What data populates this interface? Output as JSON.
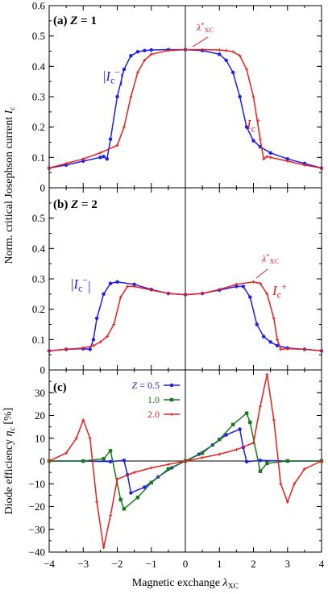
{
  "colors": {
    "red": "#e8201c",
    "blue": "#1d1df0",
    "green": "#1a7a1a",
    "axis": "#000000"
  },
  "chart_data": [
    {
      "type": "line",
      "panel_label": "(a) Z = 1",
      "ylabel": "",
      "xlim": [
        -4,
        4
      ],
      "ylim": [
        0,
        0.6
      ],
      "yticks": [
        "0",
        "0.1",
        "0.2",
        "0.3",
        "0.4",
        "0.5",
        "0.6"
      ],
      "series": [
        {
          "name": "|I_c^-|",
          "color": "blue",
          "x": [
            -4,
            -3.5,
            -3,
            -2.5,
            -2.4,
            -2.3,
            -2.2,
            -2.0,
            -1.8,
            -1.6,
            -1.4,
            -1.2,
            -1.0,
            -0.5,
            0,
            0.5,
            1.0,
            1.2,
            1.4,
            1.6,
            1.8,
            2.0,
            2.2,
            2.5,
            3,
            3.5,
            4
          ],
          "y": [
            0.065,
            0.075,
            0.088,
            0.1,
            0.103,
            0.095,
            0.16,
            0.3,
            0.39,
            0.435,
            0.448,
            0.452,
            0.454,
            0.455,
            0.455,
            0.452,
            0.44,
            0.42,
            0.38,
            0.3,
            0.2,
            0.155,
            0.135,
            0.115,
            0.095,
            0.08,
            0.065
          ]
        },
        {
          "name": "I_c^+",
          "color": "red",
          "x": [
            -4,
            -3.5,
            -3,
            -2.5,
            -2.0,
            -1.8,
            -1.6,
            -1.4,
            -1.2,
            -1.0,
            -0.5,
            0,
            0.5,
            1.0,
            1.2,
            1.4,
            1.6,
            1.8,
            2.0,
            2.2,
            2.3,
            2.4,
            2.5,
            3,
            3.5,
            4
          ],
          "y": [
            0.065,
            0.08,
            0.095,
            0.115,
            0.14,
            0.2,
            0.3,
            0.38,
            0.42,
            0.44,
            0.452,
            0.455,
            0.455,
            0.454,
            0.452,
            0.448,
            0.435,
            0.39,
            0.3,
            0.16,
            0.095,
            0.103,
            0.1,
            0.088,
            0.075,
            0.065
          ]
        }
      ],
      "annotations": [
        "|I_c^-|",
        "I_c^+",
        "λ*_XC"
      ]
    },
    {
      "type": "line",
      "panel_label": "(b) Z = 2",
      "ylabel": "Norm. critical Josephson current I_c",
      "xlim": [
        -4,
        4
      ],
      "ylim": [
        0,
        0.6
      ],
      "yticks": [
        "0",
        "0.1",
        "0.2",
        "0.3",
        "0.4",
        "0.5"
      ],
      "series": [
        {
          "name": "|I_c^-|",
          "color": "blue",
          "x": [
            -4,
            -3.5,
            -3,
            -2.8,
            -2.7,
            -2.6,
            -2.4,
            -2.2,
            -2.0,
            -1.5,
            -1.0,
            -0.5,
            0,
            0.5,
            1.0,
            1.5,
            1.7,
            1.9,
            2.1,
            2.3,
            2.5,
            2.7,
            3.0,
            3.5,
            4
          ],
          "y": [
            0.063,
            0.068,
            0.07,
            0.068,
            0.1,
            0.17,
            0.25,
            0.285,
            0.29,
            0.282,
            0.265,
            0.252,
            0.248,
            0.252,
            0.263,
            0.275,
            0.275,
            0.24,
            0.15,
            0.11,
            0.092,
            0.08,
            0.072,
            0.068,
            0.063
          ]
        },
        {
          "name": "I_c^+",
          "color": "red",
          "x": [
            -4,
            -3.5,
            -3.0,
            -2.7,
            -2.5,
            -2.3,
            -2.1,
            -1.9,
            -1.7,
            -1.5,
            -1.0,
            -0.5,
            0,
            0.5,
            1.0,
            1.5,
            2.0,
            2.2,
            2.4,
            2.6,
            2.7,
            2.8,
            3,
            3.5,
            4
          ],
          "y": [
            0.063,
            0.068,
            0.072,
            0.08,
            0.092,
            0.11,
            0.15,
            0.24,
            0.275,
            0.275,
            0.263,
            0.252,
            0.248,
            0.252,
            0.265,
            0.282,
            0.29,
            0.285,
            0.25,
            0.17,
            0.1,
            0.068,
            0.07,
            0.068,
            0.063
          ]
        }
      ],
      "annotations": [
        "|I_c^-|",
        "I_c^+",
        "λ*_XC"
      ]
    },
    {
      "type": "line",
      "panel_label": "(c)",
      "ylabel": "Diode efficiency η_c [%]",
      "xlabel": "Magnetic exchange λ_XC",
      "xlim": [
        -4,
        4
      ],
      "ylim": [
        -40,
        40
      ],
      "xticks": [
        "-4",
        "-3",
        "-2",
        "-1",
        "0",
        "1",
        "2",
        "3",
        "4"
      ],
      "yticks": [
        "-40",
        "-30",
        "-20",
        "-10",
        "0",
        "10",
        "20",
        "30"
      ],
      "legend_position": "top-center",
      "series": [
        {
          "name": "Z = 0.5",
          "color": "blue",
          "x": [
            -4,
            -3,
            -2.2,
            -1.8,
            -1.7,
            -1.6,
            -1.2,
            -0.8,
            -0.4,
            0,
            0.4,
            0.8,
            1.2,
            1.6,
            1.7,
            1.8,
            2.2,
            3,
            4
          ],
          "y": [
            0,
            0,
            -0.3,
            0.3,
            -6,
            -14,
            -11.5,
            -7,
            -3,
            0,
            3,
            7,
            11.5,
            14,
            6,
            -0.3,
            0.3,
            0,
            0
          ]
        },
        {
          "name": "1.0",
          "color": "green",
          "x": [
            -4,
            -3,
            -2.4,
            -2.2,
            -1.9,
            -1.8,
            -1.4,
            -1.0,
            -0.5,
            0,
            0.5,
            1.0,
            1.4,
            1.8,
            1.9,
            2.2,
            2.4,
            3,
            4
          ],
          "y": [
            0,
            0,
            1,
            4.5,
            -17,
            -21,
            -16,
            -9.5,
            -3.5,
            0,
            3.5,
            9.5,
            16,
            21,
            17,
            -4.5,
            -1,
            0,
            0
          ]
        },
        {
          "name": "2.0",
          "color": "red",
          "x": [
            -4,
            -3.5,
            -3.2,
            -3.0,
            -2.8,
            -2.6,
            -2.4,
            -2.2,
            -2.0,
            -1.5,
            -1.0,
            -0.5,
            0,
            0.5,
            1.0,
            1.5,
            2.0,
            2.2,
            2.4,
            2.6,
            2.8,
            3.0,
            3.2,
            3.5,
            4
          ],
          "y": [
            0,
            3.5,
            10,
            18,
            10,
            -18,
            -38,
            -24,
            -8,
            -5,
            -3,
            -1.5,
            0,
            1.5,
            3,
            5,
            8,
            24,
            38,
            18,
            -10,
            -18,
            -10,
            -3.5,
            0
          ]
        }
      ]
    }
  ]
}
